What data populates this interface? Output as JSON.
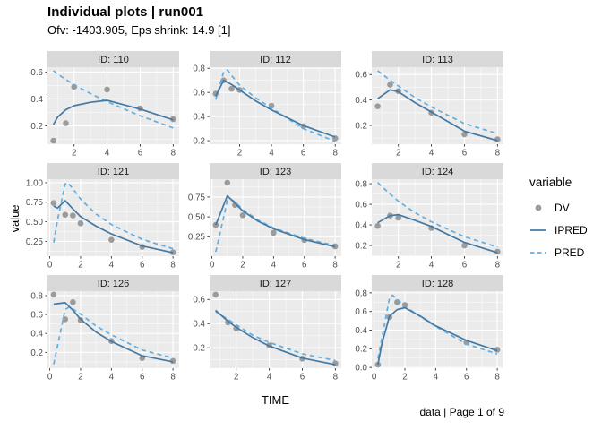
{
  "header": {
    "title": "Individual plots | run001",
    "subtitle": "Ofv: -1403.905, Eps shrink: 14.9 [1]"
  },
  "axes": {
    "x_label": "TIME",
    "y_label": "value"
  },
  "caption": "data | Page 1 of 9",
  "legend": {
    "title": "variable",
    "entries": [
      {
        "label": "DV",
        "glyph": "point"
      },
      {
        "label": "IPRED",
        "glyph": "solid-line"
      },
      {
        "label": "PRED",
        "glyph": "dashed-line"
      }
    ]
  },
  "colors": {
    "dv_point": "#9b9b9b",
    "ipred_line": "#4479a4",
    "pred_line": "#62aedd",
    "strip_bg": "#d9d9d9",
    "strip_text": "#1a1a1a",
    "panel_bg": "#ebebeb",
    "grid_major": "#ffffff",
    "tick_text": "#4d4d4d",
    "tick_mark": "#333333"
  },
  "chart_data": {
    "type": "line",
    "title": "Individual plots | run001",
    "subtitle": "Ofv: -1403.905, Eps shrink: 14.9 [1]",
    "xlabel": "TIME",
    "ylabel": "value",
    "legend_position": "right",
    "legend_title": "variable",
    "series_legend": [
      "DV (grey points)",
      "IPRED (solid blue line)",
      "PRED (dashed light-blue line)"
    ],
    "facet_layout": "3x3, free x and y scales",
    "facets": [
      {
        "id_label": "ID: 110",
        "xlim": [
          0.39,
          8.36
        ],
        "ylim": [
          0.064,
          0.636
        ],
        "xticks": [
          2,
          4,
          6,
          8
        ],
        "xtick_labels": [
          "2",
          "4",
          "6",
          "8"
        ],
        "yticks": [
          0.2,
          0.4,
          0.6
        ],
        "ytick_labels": [
          "0.2",
          "0.4",
          "0.6"
        ],
        "dv": [
          [
            0.75,
            0.09
          ],
          [
            1.5,
            0.22
          ],
          [
            2,
            0.49
          ],
          [
            4,
            0.47
          ],
          [
            6,
            0.33
          ],
          [
            8,
            0.25
          ]
        ],
        "ipred": [
          [
            0.75,
            0.21
          ],
          [
            1,
            0.265
          ],
          [
            1.5,
            0.32
          ],
          [
            2,
            0.35
          ],
          [
            3,
            0.375
          ],
          [
            4,
            0.39
          ],
          [
            6,
            0.325
          ],
          [
            8,
            0.245
          ]
        ],
        "pred": [
          [
            0.75,
            0.61
          ],
          [
            1,
            0.585
          ],
          [
            1.5,
            0.545
          ],
          [
            2,
            0.505
          ],
          [
            3,
            0.44
          ],
          [
            4,
            0.38
          ],
          [
            6,
            0.275
          ],
          [
            8,
            0.185
          ]
        ]
      },
      {
        "id_label": "ID: 112",
        "xlim": [
          0.12,
          8.38
        ],
        "ylim": [
          0.171,
          0.809
        ],
        "xticks": [
          2,
          4,
          6,
          8
        ],
        "xtick_labels": [
          "2",
          "4",
          "6",
          "8"
        ],
        "yticks": [
          0.2,
          0.4,
          0.6,
          0.8
        ],
        "ytick_labels": [
          "0.2",
          "0.4",
          "0.6",
          "0.8"
        ],
        "dv": [
          [
            0.5,
            0.59
          ],
          [
            1,
            0.7
          ],
          [
            1.5,
            0.63
          ],
          [
            2,
            0.62
          ],
          [
            4,
            0.49
          ],
          [
            6,
            0.32
          ],
          [
            8,
            0.22
          ]
        ],
        "ipred": [
          [
            0.5,
            0.57
          ],
          [
            1,
            0.7
          ],
          [
            1.5,
            0.665
          ],
          [
            2,
            0.62
          ],
          [
            3,
            0.53
          ],
          [
            4,
            0.455
          ],
          [
            6,
            0.325
          ],
          [
            8,
            0.23
          ]
        ],
        "pred": [
          [
            0.5,
            0.54
          ],
          [
            1,
            0.77
          ],
          [
            1.25,
            0.785
          ],
          [
            1.5,
            0.74
          ],
          [
            2,
            0.66
          ],
          [
            3,
            0.555
          ],
          [
            4,
            0.47
          ],
          [
            6,
            0.3
          ],
          [
            8,
            0.195
          ]
        ]
      },
      {
        "id_label": "ID: 113",
        "xlim": [
          0.39,
          8.36
        ],
        "ylim": [
          0.052,
          0.658
        ],
        "xticks": [
          2,
          4,
          6,
          8
        ],
        "xtick_labels": [
          "2",
          "4",
          "6",
          "8"
        ],
        "yticks": [
          0.2,
          0.4,
          0.6
        ],
        "ytick_labels": [
          "0.2",
          "0.4",
          "0.6"
        ],
        "dv": [
          [
            0.75,
            0.35
          ],
          [
            1.5,
            0.52
          ],
          [
            2,
            0.47
          ],
          [
            4,
            0.3
          ],
          [
            6,
            0.13
          ],
          [
            8,
            0.09
          ]
        ],
        "ipred": [
          [
            0.75,
            0.41
          ],
          [
            1.5,
            0.48
          ],
          [
            2,
            0.465
          ],
          [
            3,
            0.38
          ],
          [
            4,
            0.305
          ],
          [
            6,
            0.155
          ],
          [
            8,
            0.08
          ]
        ],
        "pred": [
          [
            0.75,
            0.63
          ],
          [
            1.5,
            0.555
          ],
          [
            2,
            0.51
          ],
          [
            3,
            0.42
          ],
          [
            4,
            0.345
          ],
          [
            6,
            0.215
          ],
          [
            8,
            0.135
          ]
        ]
      },
      {
        "id_label": "ID: 121",
        "xlim": [
          -0.15,
          8.4
        ],
        "ylim": [
          0.06,
          1.045
        ],
        "xticks": [
          0,
          2,
          4,
          6,
          8
        ],
        "xtick_labels": [
          "0",
          "2",
          "4",
          "6",
          "8"
        ],
        "yticks": [
          0.25,
          0.5,
          0.75,
          1.0
        ],
        "ytick_labels": [
          "0.25",
          "0.50",
          "0.75",
          "1.00"
        ],
        "dv": [
          [
            0.25,
            0.74
          ],
          [
            1,
            0.59
          ],
          [
            1.5,
            0.58
          ],
          [
            2,
            0.48
          ],
          [
            4,
            0.27
          ],
          [
            6,
            0.18
          ],
          [
            8,
            0.11
          ]
        ],
        "ipred": [
          [
            0.25,
            0.7
          ],
          [
            0.5,
            0.675
          ],
          [
            1,
            0.77
          ],
          [
            1.5,
            0.665
          ],
          [
            2,
            0.565
          ],
          [
            3,
            0.445
          ],
          [
            4,
            0.345
          ],
          [
            6,
            0.19
          ],
          [
            8,
            0.105
          ]
        ],
        "pred": [
          [
            0.25,
            0.235
          ],
          [
            0.5,
            0.52
          ],
          [
            1,
            0.985
          ],
          [
            1.15,
            1.0
          ],
          [
            1.5,
            0.925
          ],
          [
            2,
            0.79
          ],
          [
            3,
            0.6
          ],
          [
            4,
            0.465
          ],
          [
            6,
            0.275
          ],
          [
            8,
            0.155
          ]
        ]
      },
      {
        "id_label": "ID: 123",
        "xlim": [
          -0.15,
          8.4
        ],
        "ylim": [
          0.006,
          0.974
        ],
        "xticks": [
          0,
          2,
          4,
          6,
          8
        ],
        "xtick_labels": [
          "0",
          "2",
          "4",
          "6",
          "8"
        ],
        "yticks": [
          0.25,
          0.5,
          0.75
        ],
        "ytick_labels": [
          "0.25",
          "0.50",
          "0.75"
        ],
        "dv": [
          [
            0.25,
            0.4
          ],
          [
            1,
            0.93
          ],
          [
            1.5,
            0.65
          ],
          [
            2,
            0.52
          ],
          [
            4,
            0.3
          ],
          [
            6,
            0.21
          ],
          [
            8,
            0.13
          ]
        ],
        "ipred": [
          [
            0.25,
            0.4
          ],
          [
            1,
            0.765
          ],
          [
            1.5,
            0.67
          ],
          [
            2,
            0.575
          ],
          [
            3,
            0.445
          ],
          [
            4,
            0.35
          ],
          [
            6,
            0.215
          ],
          [
            8,
            0.125
          ]
        ],
        "pred": [
          [
            0.25,
            0.06
          ],
          [
            1,
            0.705
          ],
          [
            1.25,
            0.72
          ],
          [
            1.5,
            0.69
          ],
          [
            2,
            0.59
          ],
          [
            3,
            0.46
          ],
          [
            4,
            0.36
          ],
          [
            6,
            0.23
          ],
          [
            8,
            0.14
          ]
        ]
      },
      {
        "id_label": "ID: 124",
        "xlim": [
          0.39,
          8.36
        ],
        "ylim": [
          0.096,
          0.844
        ],
        "xticks": [
          2,
          4,
          6,
          8
        ],
        "xtick_labels": [
          "2",
          "4",
          "6",
          "8"
        ],
        "yticks": [
          0.2,
          0.4,
          0.6,
          0.8
        ],
        "ytick_labels": [
          "0.2",
          "0.4",
          "0.6",
          "0.8"
        ],
        "dv": [
          [
            0.75,
            0.39
          ],
          [
            1.5,
            0.49
          ],
          [
            2,
            0.47
          ],
          [
            4,
            0.37
          ],
          [
            6,
            0.2
          ],
          [
            8,
            0.14
          ]
        ],
        "ipred": [
          [
            0.75,
            0.42
          ],
          [
            1.5,
            0.49
          ],
          [
            2,
            0.5
          ],
          [
            3,
            0.445
          ],
          [
            4,
            0.385
          ],
          [
            6,
            0.23
          ],
          [
            8,
            0.13
          ]
        ],
        "pred": [
          [
            0.75,
            0.81
          ],
          [
            1.5,
            0.7
          ],
          [
            2,
            0.63
          ],
          [
            3,
            0.52
          ],
          [
            4,
            0.43
          ],
          [
            6,
            0.285
          ],
          [
            8,
            0.185
          ]
        ]
      },
      {
        "id_label": "ID: 126",
        "xlim": [
          -0.15,
          8.4
        ],
        "ylim": [
          0.033,
          0.847
        ],
        "xticks": [
          0,
          2,
          4,
          6,
          8
        ],
        "xtick_labels": [
          "0",
          "2",
          "4",
          "6",
          "8"
        ],
        "yticks": [
          0.2,
          0.4,
          0.6,
          0.8
        ],
        "ytick_labels": [
          "0.2",
          "0.4",
          "0.6",
          "0.8"
        ],
        "dv": [
          [
            0.25,
            0.81
          ],
          [
            1,
            0.55
          ],
          [
            1.5,
            0.73
          ],
          [
            2,
            0.54
          ],
          [
            4,
            0.32
          ],
          [
            6,
            0.14
          ],
          [
            8,
            0.11
          ]
        ],
        "ipred": [
          [
            0.25,
            0.71
          ],
          [
            1,
            0.725
          ],
          [
            1.5,
            0.645
          ],
          [
            2,
            0.55
          ],
          [
            3,
            0.415
          ],
          [
            4,
            0.315
          ],
          [
            6,
            0.165
          ],
          [
            8,
            0.1
          ]
        ],
        "pred": [
          [
            0.25,
            0.075
          ],
          [
            1,
            0.655
          ],
          [
            1.3,
            0.68
          ],
          [
            2,
            0.605
          ],
          [
            3,
            0.48
          ],
          [
            4,
            0.385
          ],
          [
            6,
            0.225
          ],
          [
            8,
            0.14
          ]
        ]
      },
      {
        "id_label": "ID: 127",
        "xlim": [
          0.39,
          8.36
        ],
        "ylim": [
          0.031,
          0.669
        ],
        "xticks": [
          2,
          4,
          6,
          8
        ],
        "xtick_labels": [
          "2",
          "4",
          "6",
          "8"
        ],
        "yticks": [
          0.2,
          0.4,
          0.6
        ],
        "ytick_labels": [
          "0.2",
          "0.4",
          "0.6"
        ],
        "dv": [
          [
            0.75,
            0.64
          ],
          [
            1.5,
            0.41
          ],
          [
            2,
            0.36
          ],
          [
            4,
            0.22
          ],
          [
            6,
            0.11
          ],
          [
            8,
            0.07
          ]
        ],
        "ipred": [
          [
            0.75,
            0.51
          ],
          [
            1.5,
            0.42
          ],
          [
            2,
            0.37
          ],
          [
            3,
            0.285
          ],
          [
            4,
            0.215
          ],
          [
            6,
            0.115
          ],
          [
            8,
            0.06
          ]
        ],
        "pred": [
          [
            0.75,
            0.5
          ],
          [
            1.5,
            0.435
          ],
          [
            2,
            0.39
          ],
          [
            3,
            0.305
          ],
          [
            4,
            0.245
          ],
          [
            6,
            0.15
          ],
          [
            8,
            0.095
          ]
        ]
      },
      {
        "id_label": "ID: 128",
        "xlim": [
          -0.15,
          8.4
        ],
        "ylim": [
          -0.008,
          0.818
        ],
        "xticks": [
          0,
          2,
          4,
          6,
          8
        ],
        "xtick_labels": [
          "0",
          "2",
          "4",
          "6",
          "8"
        ],
        "yticks": [
          0.0,
          0.2,
          0.4,
          0.6,
          0.8
        ],
        "ytick_labels": [
          "0.0",
          "0.2",
          "0.4",
          "0.6",
          "0.8"
        ],
        "dv": [
          [
            0.25,
            0.03
          ],
          [
            1,
            0.54
          ],
          [
            1.5,
            0.7
          ],
          [
            2,
            0.67
          ],
          [
            6,
            0.27
          ],
          [
            8,
            0.19
          ]
        ],
        "ipred": [
          [
            0.25,
            0.03
          ],
          [
            0.5,
            0.25
          ],
          [
            1,
            0.55
          ],
          [
            1.5,
            0.62
          ],
          [
            2,
            0.64
          ],
          [
            3,
            0.55
          ],
          [
            4,
            0.445
          ],
          [
            6,
            0.29
          ],
          [
            8,
            0.18
          ]
        ],
        "pred": [
          [
            0.25,
            0.095
          ],
          [
            1,
            0.745
          ],
          [
            1.2,
            0.775
          ],
          [
            1.5,
            0.73
          ],
          [
            2,
            0.655
          ],
          [
            3,
            0.545
          ],
          [
            4,
            0.44
          ],
          [
            6,
            0.25
          ],
          [
            8,
            0.145
          ]
        ]
      }
    ]
  }
}
